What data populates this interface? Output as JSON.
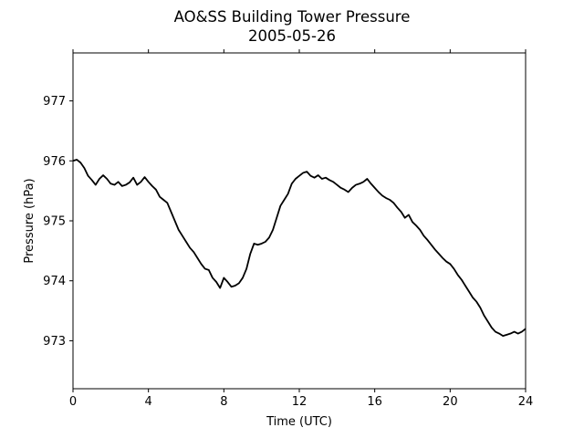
{
  "chart_data": {
    "type": "line",
    "title": "AO&SS Building Tower Pressure",
    "subtitle": "2005-05-26",
    "xlabel": "Time (UTC)",
    "ylabel": "Pressure (hPa)",
    "xlim": [
      0,
      24
    ],
    "ylim": [
      972.2,
      977.8
    ],
    "xticks": [
      "0",
      "4",
      "8",
      "12",
      "16",
      "20",
      "24"
    ],
    "yticks": [
      "973",
      "974",
      "975",
      "976",
      "977"
    ],
    "grid": false,
    "series": [
      {
        "color": "#000000",
        "x": [
          0.0,
          0.2,
          0.4,
          0.6,
          0.8,
          1.0,
          1.2,
          1.4,
          1.6,
          1.8,
          2.0,
          2.2,
          2.4,
          2.6,
          2.8,
          3.0,
          3.2,
          3.4,
          3.6,
          3.8,
          4.0,
          4.2,
          4.4,
          4.6,
          4.8,
          5.0,
          5.2,
          5.4,
          5.6,
          5.8,
          6.0,
          6.2,
          6.4,
          6.6,
          6.8,
          7.0,
          7.2,
          7.4,
          7.6,
          7.8,
          8.0,
          8.2,
          8.4,
          8.6,
          8.8,
          9.0,
          9.2,
          9.4,
          9.6,
          9.8,
          10.0,
          10.2,
          10.4,
          10.6,
          10.8,
          11.0,
          11.2,
          11.4,
          11.6,
          11.8,
          12.0,
          12.2,
          12.4,
          12.6,
          12.8,
          13.0,
          13.2,
          13.4,
          13.6,
          13.8,
          14.0,
          14.2,
          14.4,
          14.6,
          14.8,
          15.0,
          15.2,
          15.4,
          15.6,
          15.8,
          16.0,
          16.2,
          16.4,
          16.6,
          16.8,
          17.0,
          17.2,
          17.4,
          17.6,
          17.8,
          18.0,
          18.2,
          18.4,
          18.6,
          18.8,
          19.0,
          19.2,
          19.4,
          19.6,
          19.8,
          20.0,
          20.2,
          20.4,
          20.6,
          20.8,
          21.0,
          21.2,
          21.4,
          21.6,
          21.8,
          22.0,
          22.2,
          22.4,
          22.6,
          22.8,
          23.0,
          23.2,
          23.4,
          23.6,
          23.8,
          24.0
        ],
        "y": [
          976.0,
          976.02,
          975.97,
          975.88,
          975.75,
          975.68,
          975.6,
          975.7,
          975.76,
          975.7,
          975.62,
          975.6,
          975.65,
          975.58,
          975.6,
          975.64,
          975.72,
          975.6,
          975.65,
          975.73,
          975.65,
          975.58,
          975.52,
          975.4,
          975.35,
          975.3,
          975.15,
          975.0,
          974.85,
          974.75,
          974.65,
          974.55,
          974.48,
          974.38,
          974.28,
          974.2,
          974.18,
          974.05,
          973.98,
          973.88,
          974.05,
          973.98,
          973.9,
          973.92,
          973.96,
          974.05,
          974.2,
          974.45,
          974.62,
          974.6,
          974.62,
          974.65,
          974.72,
          974.85,
          975.05,
          975.25,
          975.35,
          975.45,
          975.62,
          975.7,
          975.75,
          975.8,
          975.82,
          975.75,
          975.72,
          975.76,
          975.7,
          975.72,
          975.68,
          975.65,
          975.6,
          975.55,
          975.52,
          975.48,
          975.55,
          975.6,
          975.62,
          975.65,
          975.7,
          975.62,
          975.55,
          975.48,
          975.42,
          975.38,
          975.35,
          975.3,
          975.22,
          975.15,
          975.05,
          975.1,
          974.98,
          974.92,
          974.85,
          974.75,
          974.68,
          974.6,
          974.52,
          974.45,
          974.38,
          974.32,
          974.28,
          974.2,
          974.1,
          974.02,
          973.92,
          973.82,
          973.72,
          973.65,
          973.55,
          973.42,
          973.32,
          973.22,
          973.15,
          973.12,
          973.08,
          973.1,
          973.12,
          973.15,
          973.12,
          973.15,
          973.2
        ]
      }
    ]
  }
}
